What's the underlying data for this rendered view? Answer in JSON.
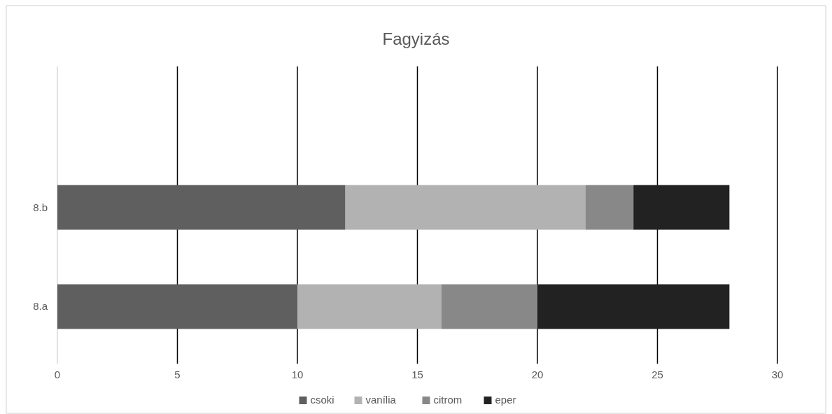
{
  "chart_data": {
    "type": "bar",
    "orientation": "horizontal",
    "stacked": true,
    "title": "Fagyizás",
    "categories": [
      "8.b",
      "8.a"
    ],
    "series": [
      {
        "name": "csoki",
        "color": "#5f5f5f",
        "values": [
          12,
          10
        ]
      },
      {
        "name": "vanília",
        "color": "#b2b2b2",
        "values": [
          10,
          6
        ]
      },
      {
        "name": "citrom",
        "color": "#888888",
        "values": [
          2,
          4
        ]
      },
      {
        "name": "eper",
        "color": "#222222",
        "values": [
          4,
          8
        ]
      }
    ],
    "xlim": [
      0,
      30
    ],
    "xticks": [
      0,
      5,
      10,
      15,
      20,
      25,
      30
    ],
    "grid": "x",
    "legend": "bottom"
  }
}
